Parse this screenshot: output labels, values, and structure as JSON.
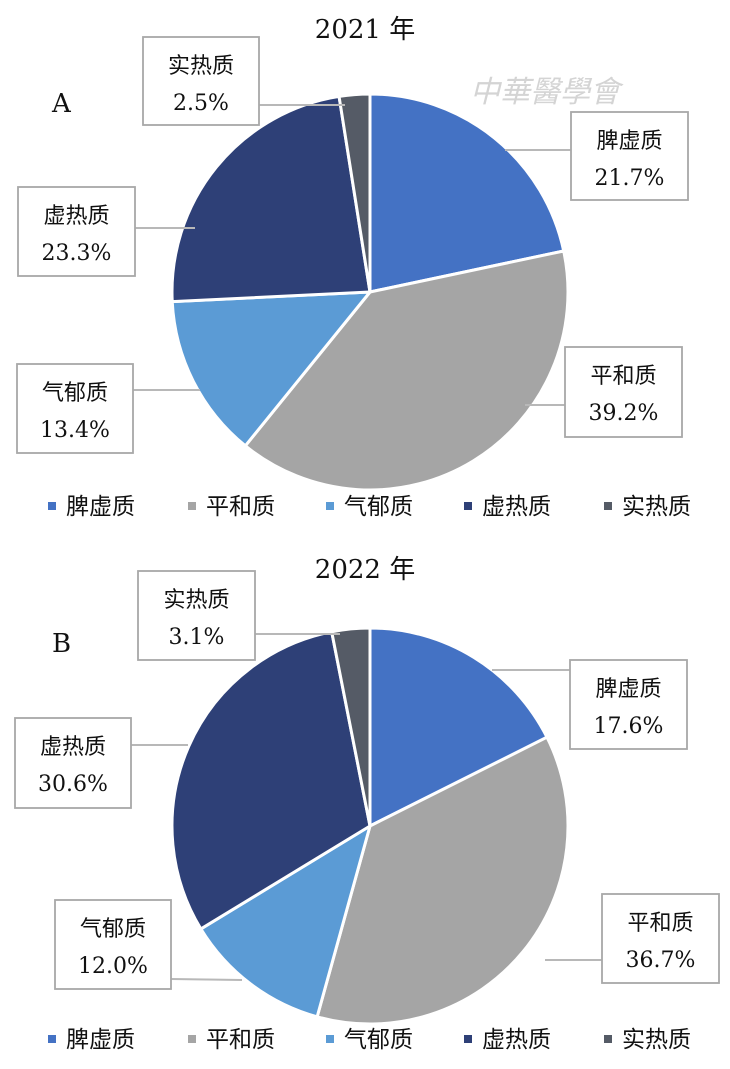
{
  "watermark": "中華醫學會",
  "colors": {
    "脾虚质": "#4472c4",
    "平和质": "#a5a5a5",
    "气郁质": "#5b9bd5",
    "虚热质": "#2e4077",
    "实热质": "#555b66"
  },
  "chart_data": [
    {
      "type": "pie",
      "title": "2021 年",
      "panel": "A",
      "legend": [
        "脾虚质",
        "平和质",
        "气郁质",
        "虚热质",
        "实热质"
      ],
      "slices": [
        {
          "name": "脾虚质",
          "value": 21.7,
          "label": "21.7%"
        },
        {
          "name": "平和质",
          "value": 39.2,
          "label": "39.2%"
        },
        {
          "name": "气郁质",
          "value": 13.4,
          "label": "13.4%"
        },
        {
          "name": "虚热质",
          "value": 23.3,
          "label": "23.3%"
        },
        {
          "name": "实热质",
          "value": 2.5,
          "label": "2.5%"
        }
      ]
    },
    {
      "type": "pie",
      "title": "2022 年",
      "panel": "B",
      "legend": [
        "脾虚质",
        "平和质",
        "气郁质",
        "虚热质",
        "实热质"
      ],
      "slices": [
        {
          "name": "脾虚质",
          "value": 17.6,
          "label": "17.6%"
        },
        {
          "name": "平和质",
          "value": 36.7,
          "label": "36.7%"
        },
        {
          "name": "气郁质",
          "value": 12.0,
          "label": "12.0%"
        },
        {
          "name": "虚热质",
          "value": 30.6,
          "label": "30.6%"
        },
        {
          "name": "实热质",
          "value": 3.1,
          "label": "3.1%"
        }
      ]
    }
  ]
}
